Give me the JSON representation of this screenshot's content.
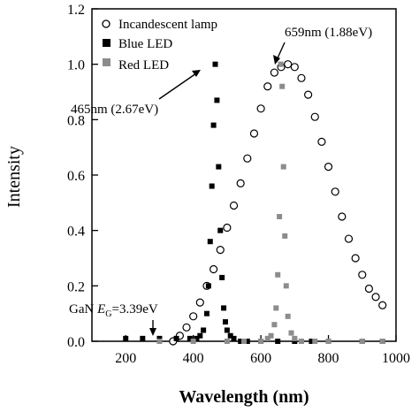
{
  "chart_data": {
    "type": "scatter",
    "xlabel": "Wavelength (nm)",
    "ylabel": "Intensity",
    "xlim": [
      100,
      1000
    ],
    "ylim": [
      0,
      1.2
    ],
    "xticks": [
      200,
      400,
      600,
      800,
      1000
    ],
    "yticks": [
      0.0,
      0.2,
      0.4,
      0.6,
      0.8,
      1.0,
      1.2
    ],
    "xtick_labels": [
      "200",
      "400",
      "600",
      "800",
      "1000"
    ],
    "ytick_labels": [
      "0.0",
      "0.2",
      "0.4",
      "0.6",
      "0.8",
      "1.0",
      "1.2"
    ],
    "grid": false,
    "legend_position": "top-left",
    "series": [
      {
        "name": "Incandescent lamp",
        "marker": "open-circle",
        "color": "#000000",
        "x": [
          340,
          360,
          380,
          400,
          420,
          440,
          460,
          480,
          500,
          520,
          540,
          560,
          580,
          600,
          620,
          640,
          660,
          680,
          700,
          720,
          740,
          760,
          780,
          800,
          820,
          840,
          860,
          880,
          900,
          920,
          940,
          960
        ],
        "y": [
          0.0,
          0.02,
          0.05,
          0.09,
          0.14,
          0.2,
          0.26,
          0.33,
          0.41,
          0.49,
          0.57,
          0.66,
          0.75,
          0.84,
          0.92,
          0.97,
          0.99,
          1.0,
          0.99,
          0.95,
          0.89,
          0.81,
          0.72,
          0.63,
          0.54,
          0.45,
          0.37,
          0.3,
          0.24,
          0.19,
          0.16,
          0.13
        ]
      },
      {
        "name": "Blue LED",
        "marker": "filled-square",
        "color": "#000000",
        "x": [
          200,
          250,
          300,
          350,
          390,
          410,
          420,
          430,
          440,
          445,
          450,
          455,
          460,
          465,
          470,
          475,
          480,
          485,
          490,
          495,
          500,
          510,
          520,
          540,
          560,
          600,
          650,
          700,
          750,
          800,
          900,
          960
        ],
        "y": [
          0.01,
          0.01,
          0.01,
          0.01,
          0.01,
          0.01,
          0.02,
          0.04,
          0.1,
          0.2,
          0.36,
          0.56,
          0.78,
          1.0,
          0.87,
          0.63,
          0.4,
          0.23,
          0.12,
          0.07,
          0.04,
          0.02,
          0.01,
          0.0,
          0.0,
          0.0,
          0.0,
          0.0,
          0.0,
          0.0,
          0.0,
          0.0
        ]
      },
      {
        "name": "Red LED",
        "marker": "filled-square",
        "color": "#8c8c8c",
        "x": [
          300,
          400,
          500,
          550,
          600,
          620,
          630,
          640,
          645,
          650,
          655,
          659,
          663,
          667,
          671,
          675,
          680,
          690,
          700,
          720,
          760,
          800,
          900,
          960
        ],
        "y": [
          0.0,
          0.0,
          0.0,
          0.0,
          0.0,
          0.01,
          0.02,
          0.06,
          0.12,
          0.24,
          0.45,
          1.0,
          0.92,
          0.63,
          0.38,
          0.2,
          0.09,
          0.03,
          0.01,
          0.0,
          0.0,
          0.0,
          0.0,
          0.0
        ]
      }
    ],
    "annotations": [
      {
        "text": "659nm (1.88eV)",
        "points_to": [
          659,
          1.0
        ]
      },
      {
        "text": "465nm (2.67eV)",
        "points_to": [
          465,
          1.0
        ]
      },
      {
        "text_prefix": "GaN ",
        "text_symbol": "E",
        "text_subscript": "G",
        "text_suffix": "=3.39eV",
        "points_to": [
          365,
          0.0
        ]
      }
    ]
  }
}
